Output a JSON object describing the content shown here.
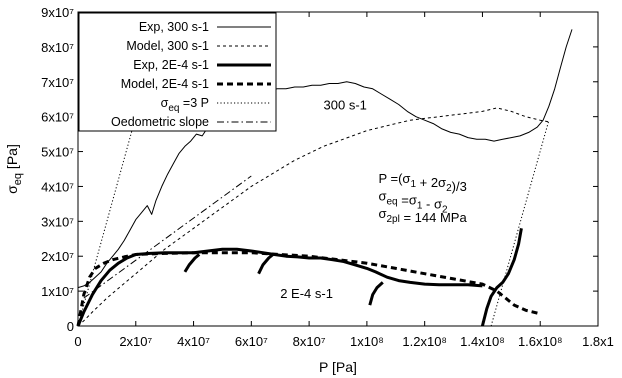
{
  "chart_data": {
    "type": "line",
    "title": "",
    "xlabel": "P  [Pa]",
    "ylabel": "σeq [Pa]",
    "xlim": [
      0,
      180000000
    ],
    "ylim": [
      0,
      90000000
    ],
    "grid": false,
    "legend_position": "top-left",
    "x_ticks": [
      {
        "value": 0,
        "label": "0"
      },
      {
        "value": 20000000,
        "label": "2x10⁷"
      },
      {
        "value": 40000000,
        "label": "4x10⁷"
      },
      {
        "value": 60000000,
        "label": "6x10⁷"
      },
      {
        "value": 80000000,
        "label": "8x10⁷"
      },
      {
        "value": 100000000,
        "label": "1x10⁸"
      },
      {
        "value": 120000000,
        "label": "1.2x10⁸"
      },
      {
        "value": 140000000,
        "label": "1.4x10⁸"
      },
      {
        "value": 160000000,
        "label": "1.6x10⁸"
      },
      {
        "value": 180000000,
        "label": "1.8x1"
      }
    ],
    "y_ticks": [
      {
        "value": 0,
        "label": "0"
      },
      {
        "value": 10000000,
        "label": "1x10⁷"
      },
      {
        "value": 20000000,
        "label": "2x10⁷"
      },
      {
        "value": 30000000,
        "label": "3x10⁷"
      },
      {
        "value": 40000000,
        "label": "4x10⁷"
      },
      {
        "value": 50000000,
        "label": "5x10⁷"
      },
      {
        "value": 60000000,
        "label": "6x10⁷"
      },
      {
        "value": 70000000,
        "label": "7x10⁷"
      },
      {
        "value": 80000000,
        "label": "8x10⁷"
      },
      {
        "value": 90000000,
        "label": "9x10⁷"
      }
    ],
    "series": [
      {
        "name": "Exp, 300 s-1",
        "style": "solid-thin",
        "points": [
          [
            0,
            11000000
          ],
          [
            2000000,
            11500000
          ],
          [
            4000000,
            12500000
          ],
          [
            6000000,
            14000000
          ],
          [
            8000000,
            15500000
          ],
          [
            10000000,
            18000000
          ],
          [
            12000000,
            20000000
          ],
          [
            14000000,
            22000000
          ],
          [
            16000000,
            24500000
          ],
          [
            18000000,
            27500000
          ],
          [
            20000000,
            30500000
          ],
          [
            22000000,
            32500000
          ],
          [
            24000000,
            34500000
          ],
          [
            25500000,
            32000000
          ],
          [
            27000000,
            36000000
          ],
          [
            29000000,
            40000000
          ],
          [
            31000000,
            43500000
          ],
          [
            33000000,
            46500000
          ],
          [
            35000000,
            49500000
          ],
          [
            37000000,
            51500000
          ],
          [
            39000000,
            53000000
          ],
          [
            41000000,
            55000000
          ],
          [
            43000000,
            54500000
          ],
          [
            45000000,
            57000000
          ],
          [
            47000000,
            59000000
          ],
          [
            49000000,
            61000000
          ],
          [
            51000000,
            62000000
          ],
          [
            53000000,
            63500000
          ],
          [
            55000000,
            63000000
          ],
          [
            57000000,
            65000000
          ],
          [
            59000000,
            66000000
          ],
          [
            61000000,
            66500000
          ],
          [
            63000000,
            67000000
          ],
          [
            66000000,
            67500000
          ],
          [
            69000000,
            68000000
          ],
          [
            72000000,
            68000000
          ],
          [
            75000000,
            68500000
          ],
          [
            78000000,
            68500000
          ],
          [
            81000000,
            69000000
          ],
          [
            84000000,
            69000000
          ],
          [
            87000000,
            69500000
          ],
          [
            90000000,
            69500000
          ],
          [
            93000000,
            70000000
          ],
          [
            96000000,
            69500000
          ],
          [
            99000000,
            68500000
          ],
          [
            102000000,
            68000000
          ],
          [
            105000000,
            66500000
          ],
          [
            108000000,
            65000000
          ],
          [
            111000000,
            63500000
          ],
          [
            114000000,
            61500000
          ],
          [
            117000000,
            60000000
          ],
          [
            120000000,
            59000000
          ],
          [
            123000000,
            58000000
          ],
          [
            126000000,
            56500000
          ],
          [
            129000000,
            55500000
          ],
          [
            132000000,
            55000000
          ],
          [
            135000000,
            54000000
          ],
          [
            138000000,
            53500000
          ],
          [
            141000000,
            53500000
          ],
          [
            144000000,
            53000000
          ],
          [
            147000000,
            53500000
          ],
          [
            150000000,
            54000000
          ],
          [
            153000000,
            54500000
          ],
          [
            156000000,
            55500000
          ],
          [
            159000000,
            57000000
          ],
          [
            161000000,
            59000000
          ],
          [
            163000000,
            63000000
          ],
          [
            165000000,
            68000000
          ],
          [
            167000000,
            74000000
          ],
          [
            169000000,
            80000000
          ],
          [
            171000000,
            85000000
          ]
        ]
      },
      {
        "name": "Model, 300 s-1",
        "style": "dashed-thin",
        "points": [
          [
            0,
            0
          ],
          [
            2000000,
            1500000
          ],
          [
            5000000,
            4000000
          ],
          [
            10000000,
            8000000
          ],
          [
            15000000,
            11500000
          ],
          [
            20000000,
            15000000
          ],
          [
            25000000,
            18500000
          ],
          [
            30000000,
            22000000
          ],
          [
            35000000,
            25000000
          ],
          [
            40000000,
            28000000
          ],
          [
            45000000,
            31000000
          ],
          [
            50000000,
            34000000
          ],
          [
            55000000,
            37000000
          ],
          [
            60000000,
            40000000
          ],
          [
            65000000,
            42500000
          ],
          [
            70000000,
            45000000
          ],
          [
            75000000,
            47500000
          ],
          [
            80000000,
            49500000
          ],
          [
            85000000,
            51500000
          ],
          [
            90000000,
            53000000
          ],
          [
            95000000,
            54500000
          ],
          [
            100000000,
            56000000
          ],
          [
            105000000,
            57000000
          ],
          [
            110000000,
            58000000
          ],
          [
            115000000,
            59000000
          ],
          [
            120000000,
            59500000
          ],
          [
            125000000,
            60000000
          ],
          [
            130000000,
            60500000
          ],
          [
            135000000,
            61000000
          ],
          [
            140000000,
            61500000
          ],
          [
            145000000,
            62500000
          ],
          [
            150000000,
            61500000
          ],
          [
            155000000,
            60000000
          ],
          [
            160000000,
            59000000
          ],
          [
            163000000,
            58500000
          ]
        ]
      },
      {
        "name": "Exp, 2E-4 s-1",
        "style": "solid-thick",
        "segments": [
          [
            [
              0,
              0
            ],
            [
              2000000,
              4000000
            ],
            [
              5000000,
              9000000
            ],
            [
              8000000,
              13000000
            ],
            [
              11000000,
              16000000
            ],
            [
              14000000,
              18000000
            ],
            [
              17000000,
              19500000
            ],
            [
              20000000,
              20500000
            ],
            [
              25000000,
              20800000
            ],
            [
              30000000,
              21000000
            ],
            [
              35000000,
              21000000
            ],
            [
              40000000,
              21000000
            ],
            [
              45000000,
              21500000
            ],
            [
              50000000,
              22000000
            ],
            [
              55000000,
              22000000
            ],
            [
              60000000,
              21500000
            ],
            [
              64000000,
              21000000
            ],
            [
              68000000,
              20500000
            ],
            [
              72000000,
              20000000
            ],
            [
              76000000,
              19800000
            ],
            [
              80000000,
              19500000
            ],
            [
              84000000,
              19500000
            ],
            [
              88000000,
              19000000
            ],
            [
              92000000,
              18500000
            ],
            [
              96000000,
              17500000
            ],
            [
              100000000,
              16500000
            ],
            [
              103000000,
              15500000
            ],
            [
              107000000,
              14000000
            ],
            [
              111000000,
              13000000
            ],
            [
              115000000,
              12500000
            ],
            [
              120000000,
              12000000
            ],
            [
              125000000,
              11800000
            ],
            [
              130000000,
              11800000
            ],
            [
              135000000,
              11800000
            ],
            [
              140000000,
              11500000
            ]
          ],
          [
            [
              37000000,
              15500000
            ],
            [
              38500000,
              17500000
            ],
            [
              40500000,
              19500000
            ],
            [
              42000000,
              20500000
            ]
          ],
          [
            [
              62500000,
              15000000
            ],
            [
              64000000,
              17500000
            ],
            [
              66000000,
              19500000
            ],
            [
              67500000,
              20500000
            ]
          ],
          [
            [
              101000000,
              6000000
            ],
            [
              102000000,
              9000000
            ],
            [
              103500000,
              11000000
            ],
            [
              105500000,
              12500000
            ]
          ],
          [
            [
              140000000,
              0
            ],
            [
              141500000,
              5000000
            ],
            [
              143000000,
              8500000
            ],
            [
              145000000,
              11000000
            ],
            [
              147000000,
              12500000
            ],
            [
              149000000,
              15000000
            ],
            [
              151000000,
              19000000
            ],
            [
              152500000,
              23500000
            ],
            [
              153500000,
              28000000
            ]
          ]
        ]
      },
      {
        "name": "Model, 2E-4 s-1",
        "style": "dashed-thick",
        "points": [
          [
            0,
            0
          ],
          [
            2000000,
            9000000
          ],
          [
            4000000,
            14000000
          ],
          [
            6000000,
            16500000
          ],
          [
            9000000,
            18000000
          ],
          [
            12000000,
            19000000
          ],
          [
            16000000,
            19800000
          ],
          [
            20000000,
            20500000
          ],
          [
            30000000,
            20800000
          ],
          [
            40000000,
            21000000
          ],
          [
            50000000,
            21000000
          ],
          [
            60000000,
            21000000
          ],
          [
            70000000,
            20500000
          ],
          [
            80000000,
            20000000
          ],
          [
            90000000,
            19000000
          ],
          [
            100000000,
            18000000
          ],
          [
            110000000,
            16500000
          ],
          [
            120000000,
            15000000
          ],
          [
            130000000,
            13500000
          ],
          [
            140000000,
            12000000
          ],
          [
            145000000,
            10000000
          ],
          [
            148000000,
            8000000
          ],
          [
            151000000,
            6000000
          ],
          [
            155000000,
            4500000
          ],
          [
            160000000,
            3500000
          ]
        ]
      },
      {
        "name": "σeq =3 P",
        "style": "dotted",
        "points": [
          [
            0,
            0
          ],
          [
            20000000,
            60000000
          ],
          [
            22000000,
            66000000
          ],
          [
            30000000,
            90000000
          ]
        ]
      },
      {
        "name": "Oedometric slope",
        "style": "dashdot",
        "points": [
          [
            2000000,
            8000000
          ],
          [
            60000000,
            43000000
          ]
        ]
      }
    ],
    "extra_lines": [
      {
        "style": "dotted",
        "points": [
          [
            143000000,
            0
          ],
          [
            163000000,
            59000000
          ]
        ]
      }
    ],
    "annotations": [
      {
        "text": "300 s-1",
        "x": 85000000,
        "y": 62000000
      },
      {
        "text": "2 E-4 s-1",
        "x": 70000000,
        "y": 8000000
      },
      {
        "text": "P =(σ1 + 2σ2)/3",
        "x": 104000000,
        "y": 41000000
      },
      {
        "text": "σeq =σ1 - σ2",
        "x": 104000000,
        "y": 36000000
      },
      {
        "text": "σ2pl = 144 MPa",
        "x": 104000000,
        "y": 31000000
      }
    ]
  }
}
